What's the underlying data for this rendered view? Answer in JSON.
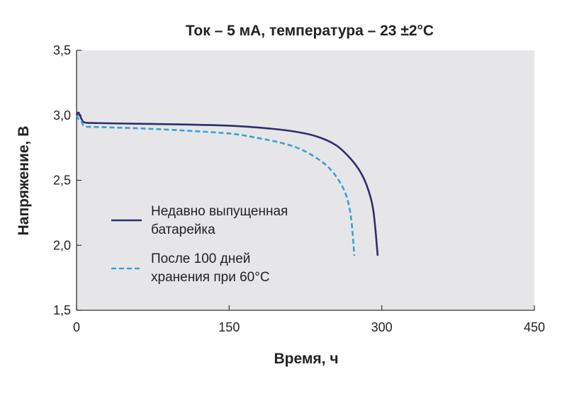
{
  "chart_data": {
    "type": "line",
    "title": "Ток – 5 мА, температура – 23 ±2°С",
    "xlabel": "Время, ч",
    "ylabel": "Напряжение, В",
    "xlim": [
      0,
      450
    ],
    "ylim": [
      1.5,
      3.5
    ],
    "x_ticks": [
      0,
      150,
      300,
      450
    ],
    "x_tick_labels": [
      "0",
      "150",
      "300",
      "450"
    ],
    "y_ticks": [
      1.5,
      2.0,
      2.5,
      3.0,
      3.5
    ],
    "y_tick_labels": [
      "1,5",
      "2,0",
      "2,5",
      "3,0",
      "3,5"
    ],
    "grid": false,
    "legend_position": "center-left",
    "background_color": "#e6e6e8",
    "series": [
      {
        "name_lines": [
          "Недавно выпущенная",
          "батарейка"
        ],
        "color": "#2e2c6e",
        "dash": "solid",
        "points": [
          [
            0,
            3.0
          ],
          [
            2,
            3.02
          ],
          [
            5,
            2.97
          ],
          [
            8,
            2.945
          ],
          [
            20,
            2.94
          ],
          [
            60,
            2.935
          ],
          [
            100,
            2.93
          ],
          [
            150,
            2.92
          ],
          [
            180,
            2.905
          ],
          [
            210,
            2.88
          ],
          [
            235,
            2.84
          ],
          [
            255,
            2.77
          ],
          [
            270,
            2.66
          ],
          [
            280,
            2.55
          ],
          [
            287,
            2.42
          ],
          [
            292,
            2.25
          ],
          [
            296,
            1.92
          ]
        ]
      },
      {
        "name_lines": [
          "После 100 дней",
          "хранения при 60°С"
        ],
        "color": "#3a9fd6",
        "dash": "dashed",
        "points": [
          [
            0,
            3.0
          ],
          [
            2,
            2.97
          ],
          [
            5,
            2.95
          ],
          [
            8,
            2.915
          ],
          [
            20,
            2.91
          ],
          [
            60,
            2.9
          ],
          [
            100,
            2.885
          ],
          [
            150,
            2.86
          ],
          [
            175,
            2.83
          ],
          [
            200,
            2.79
          ],
          [
            220,
            2.74
          ],
          [
            238,
            2.66
          ],
          [
            250,
            2.58
          ],
          [
            260,
            2.47
          ],
          [
            266,
            2.36
          ],
          [
            270,
            2.2
          ],
          [
            273,
            1.92
          ]
        ]
      }
    ]
  }
}
